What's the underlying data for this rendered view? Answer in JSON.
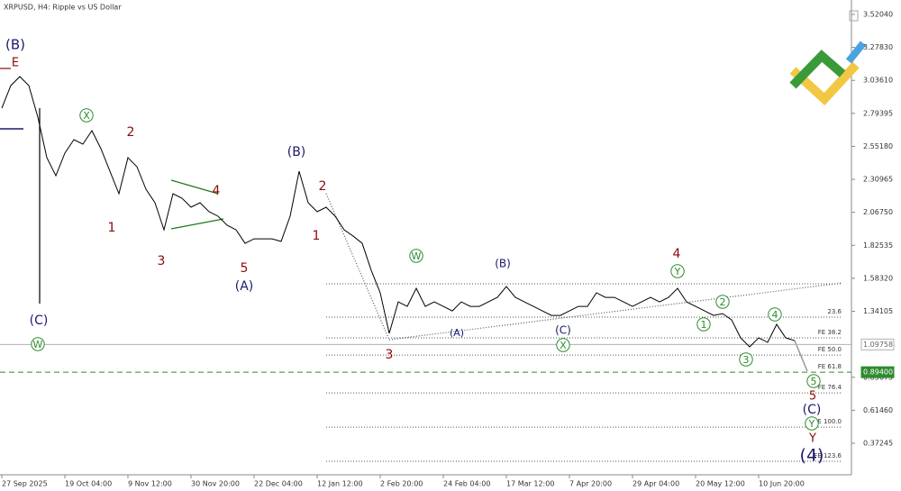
{
  "chart_data": {
    "type": "line",
    "title": "XRPUSD, H4:  Ripple vs US Dollar",
    "series": [
      {
        "name": "XRPUSD",
        "color": "#000000",
        "values": [
          2.832,
          2.998,
          3.064,
          2.998,
          2.766,
          2.469,
          2.336,
          2.502,
          2.601,
          2.568,
          2.667,
          2.535,
          2.369,
          2.204,
          2.469,
          2.402,
          2.237,
          2.138,
          1.939,
          2.204,
          2.171,
          2.105,
          2.138,
          2.072,
          2.039,
          1.973,
          1.939,
          1.84,
          1.873,
          1.873,
          1.873,
          1.854,
          2.039,
          2.369,
          2.138,
          2.072,
          2.105,
          2.039,
          1.939,
          1.893,
          1.84,
          1.642,
          1.477,
          1.179,
          1.41,
          1.377,
          1.51,
          1.377,
          1.41,
          1.377,
          1.344,
          1.41,
          1.377,
          1.377,
          1.41,
          1.443,
          1.523,
          1.443,
          1.41,
          1.377,
          1.344,
          1.311,
          1.311,
          1.344,
          1.377,
          1.377,
          1.477,
          1.443,
          1.443,
          1.41,
          1.377,
          1.41,
          1.443,
          1.41,
          1.443,
          1.51,
          1.41,
          1.377,
          1.344,
          1.311,
          1.324,
          1.278,
          1.146,
          1.08,
          1.146,
          1.113,
          1.245,
          1.146,
          1.126
        ]
      }
    ],
    "xlim": [
      0,
      94
    ],
    "xticks": [
      {
        "value": 0,
        "label": "27 Sep 2025"
      },
      {
        "value": 7,
        "label": "19 Oct 04:00"
      },
      {
        "value": 14,
        "label": "9 Nov 12:00"
      },
      {
        "value": 21,
        "label": "30 Nov 20:00"
      },
      {
        "value": 28,
        "label": "22 Dec 04:00"
      },
      {
        "value": 35,
        "label": "12 Jan 12:00"
      },
      {
        "value": 42,
        "label": "2 Feb 20:00"
      },
      {
        "value": 49,
        "label": "24 Feb 04:00"
      },
      {
        "value": 56,
        "label": "17 Mar 12:00"
      },
      {
        "value": 63,
        "label": "7 Apr 20:00"
      },
      {
        "value": 70,
        "label": "29 Apr 04:00"
      },
      {
        "value": 77,
        "label": "20 May 12:00"
      },
      {
        "value": 84,
        "label": "10 Jun 20:00"
      }
    ],
    "ylim": [
      0.141,
      3.626
    ],
    "yticks": [
      {
        "value": 3.5204,
        "label": "3.52040"
      },
      {
        "value": 3.2783,
        "label": "3.27830"
      },
      {
        "value": 3.0361,
        "label": "3.03610"
      },
      2.79395,
      {
        "value": 2.5518,
        "label": "2.55180"
      },
      2.30965,
      {
        "value": 2.0675,
        "label": "2.06750"
      },
      1.82535,
      {
        "value": 1.5832,
        "label": "1.58320"
      },
      1.34105,
      0.85675,
      {
        "value": 0.6146,
        "label": "0.61460"
      },
      0.37245
    ],
    "levels": [
      {
        "price": 1.543
      },
      {
        "price": 1.298,
        "text": "23.6"
      },
      {
        "price": 1.146,
        "text": "FE 38.2"
      },
      {
        "price": 1.02,
        "text": "FE 50.0"
      },
      {
        "price": 0.894,
        "text": "FE 61.8"
      },
      {
        "price": 0.742,
        "text": "FE 76.4"
      },
      {
        "price": 0.491,
        "text": "FE 100.0"
      },
      {
        "price": 0.24,
        "text": "FE 123.6"
      }
    ],
    "price_markers": [
      {
        "value": 1.09758,
        "label": "1.09758",
        "color": "#b0b0b0"
      },
      {
        "value": 0.894,
        "label": "0.89400",
        "color": "#2e8b2e"
      }
    ],
    "annotations": [
      {
        "text": "(B)",
        "color": "#1a1a6e"
      },
      {
        "text": "E",
        "color": "#8b0a0a"
      },
      {
        "text": "X",
        "color": "#2e8b2e",
        "style": "circle"
      },
      {
        "text": "2",
        "color": "#8b0a0a"
      },
      {
        "text": "1",
        "color": "#8b0a0a"
      },
      {
        "text": "3",
        "color": "#8b0a0a"
      },
      {
        "text": "4",
        "color": "#8b0a0a"
      },
      {
        "text": "5",
        "color": "#8b0a0a"
      },
      {
        "text": "(A)",
        "color": "#1a1a6e"
      },
      {
        "text": "(B)",
        "color": "#1a1a6e"
      },
      {
        "text": "2",
        "color": "#8b0a0a"
      },
      {
        "text": "1",
        "color": "#8b0a0a"
      },
      {
        "text": "3",
        "color": "#8b0a0a"
      },
      {
        "text": "W",
        "color": "#2e8b2e",
        "style": "circle"
      },
      {
        "text": "(B)",
        "color": "#1a1a6e"
      },
      {
        "text": "(A)",
        "color": "#1a1a6e"
      },
      {
        "text": "(C)",
        "color": "#1a1a6e"
      },
      {
        "text": "X",
        "color": "#2e8b2e",
        "style": "circle"
      },
      {
        "text": "4",
        "color": "#8b0a0a"
      },
      {
        "text": "Y",
        "color": "#2e8b2e",
        "style": "circle"
      },
      {
        "text": "1",
        "color": "#2e8b2e",
        "style": "circle"
      },
      {
        "text": "2",
        "color": "#2e8b2e",
        "style": "circle"
      },
      {
        "text": "3",
        "color": "#2e8b2e",
        "style": "circle"
      },
      {
        "text": "4",
        "color": "#2e8b2e",
        "style": "circle"
      },
      {
        "text": "5",
        "color": "#2e8b2e",
        "style": "circle"
      },
      {
        "text": "5",
        "color": "#8b0a0a"
      },
      {
        "text": "(C)",
        "color": "#1a1a6e"
      },
      {
        "text": "Y",
        "color": "#2e8b2e",
        "style": "circle"
      },
      {
        "text": "Y",
        "color": "#8b0a0a"
      },
      {
        "text": "(4)",
        "color": "#1a1a6e"
      },
      {
        "text": "(C)",
        "color": "#1a1a6e"
      },
      {
        "text": "W",
        "color": "#2e8b2e",
        "style": "circle"
      }
    ]
  }
}
